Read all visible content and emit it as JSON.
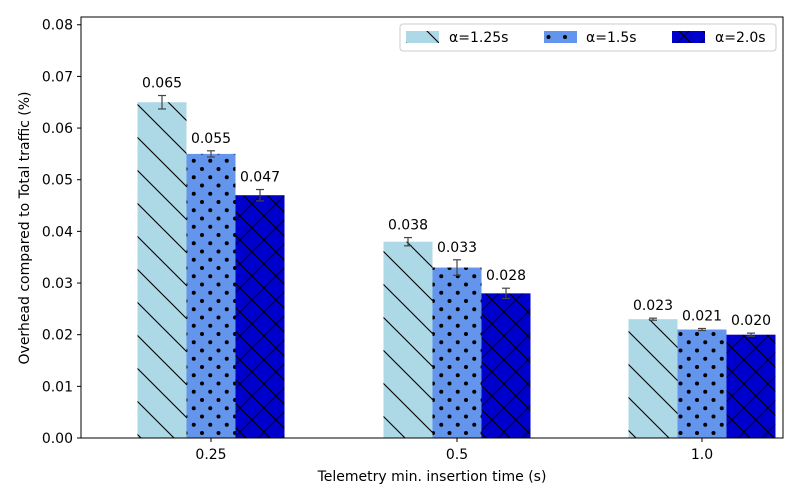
{
  "chart_data": {
    "type": "bar",
    "title": "",
    "xlabel": "Telemetry min. insertion time (s)",
    "ylabel": "Overhead compared to Total traffic (%)",
    "categories": [
      "0.25",
      "0.5",
      "1.0"
    ],
    "ylim": [
      0,
      0.0815
    ],
    "yticks": [
      "0.00",
      "0.01",
      "0.02",
      "0.03",
      "0.04",
      "0.05",
      "0.06",
      "0.07",
      "0.08"
    ],
    "legend_position": "top-right",
    "grid": false,
    "series": [
      {
        "name": "α=1.25s",
        "values": [
          0.065,
          0.038,
          0.023
        ],
        "labels": [
          "0.065",
          "0.038",
          "0.023"
        ],
        "errors": [
          0.0013,
          0.0008,
          0.0002
        ],
        "color": "#add8e6",
        "pattern": "diagonal"
      },
      {
        "name": "α=1.5s",
        "values": [
          0.055,
          0.033,
          0.021
        ],
        "labels": [
          "0.055",
          "0.033",
          "0.021"
        ],
        "errors": [
          0.0006,
          0.0015,
          0.0002
        ],
        "color": "#6495ed",
        "pattern": "dots"
      },
      {
        "name": "α=2.0s",
        "values": [
          0.047,
          0.028,
          0.02
        ],
        "labels": [
          "0.047",
          "0.028",
          "0.020"
        ],
        "errors": [
          0.0011,
          0.001,
          0.0003
        ],
        "color": "#0000cd",
        "pattern": "crosshatch"
      }
    ]
  }
}
